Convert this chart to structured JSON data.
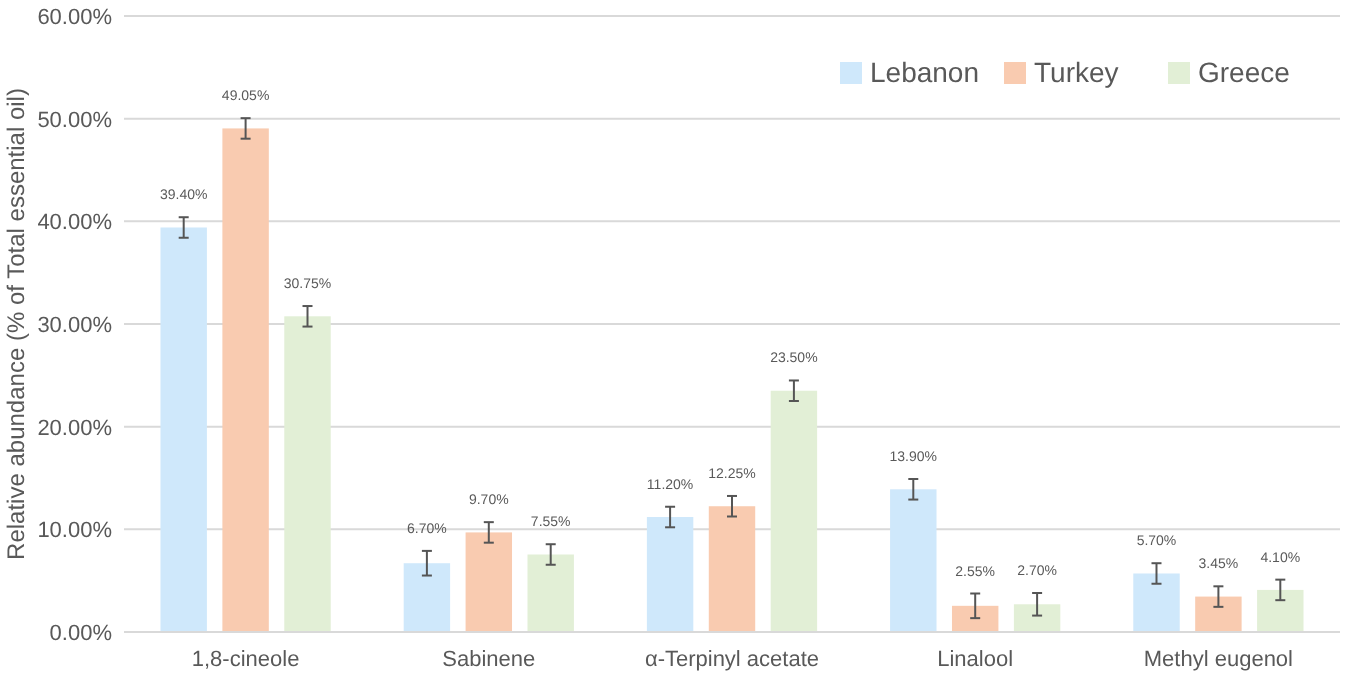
{
  "chart_data": {
    "type": "bar",
    "ylabel": "Relative abundance (% of Total essential oil)",
    "categories": [
      "1,8-cineole",
      "Sabinene",
      "α-Terpinyl acetate",
      "Linalool",
      "Methyl eugenol"
    ],
    "series": [
      {
        "name": "Lebanon",
        "color": "#cfe8fb",
        "values": [
          39.4,
          6.7,
          11.2,
          13.9,
          5.7
        ],
        "errors": [
          1,
          1.2,
          1,
          1,
          1
        ],
        "value_labels": [
          "39.40%",
          "6.70%",
          "11.20%",
          "13.90%",
          "5.70%"
        ]
      },
      {
        "name": "Turkey",
        "color": "#f9cbb0",
        "values": [
          49.05,
          9.7,
          12.25,
          2.55,
          3.45
        ],
        "errors": [
          1,
          1,
          1,
          1.2,
          1
        ],
        "value_labels": [
          "49.05%",
          "9.70%",
          "12.25%",
          "2.55%",
          "3.45%"
        ]
      },
      {
        "name": "Greece",
        "color": "#e2efd6",
        "values": [
          30.75,
          7.55,
          23.5,
          2.7,
          4.1
        ],
        "errors": [
          1,
          1,
          1,
          1.1,
          1
        ],
        "value_labels": [
          "30.75%",
          "7.55%",
          "23.50%",
          "2.70%",
          "4.10%"
        ]
      }
    ],
    "ylim": [
      0,
      60
    ],
    "yticks": [
      {
        "value": 0,
        "label": "0.00%"
      },
      {
        "value": 10,
        "label": "10.00%"
      },
      {
        "value": 20,
        "label": "20.00%"
      },
      {
        "value": 30,
        "label": "30.00%"
      },
      {
        "value": 40,
        "label": "40.00%"
      },
      {
        "value": 50,
        "label": "50.00%"
      },
      {
        "value": 60,
        "label": "60.00%"
      }
    ],
    "grid": "y",
    "legend": "top right"
  }
}
